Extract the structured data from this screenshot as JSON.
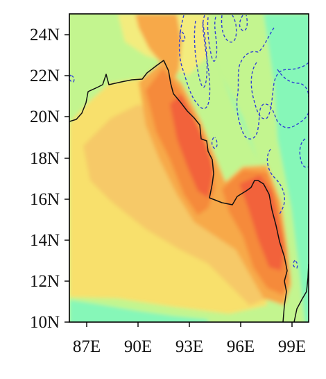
{
  "map": {
    "x_ticks": [
      "87E",
      "90E",
      "93E",
      "96E",
      "99E"
    ],
    "y_ticks": [
      "24N",
      "22N",
      "20N",
      "18N",
      "16N",
      "14N",
      "12N",
      "10N"
    ],
    "lon_range": [
      86,
      100
    ],
    "lat_range": [
      10,
      25
    ],
    "colors": {
      "aquamarine": "#86f7b8",
      "light_green": "#c3f58f",
      "pale_yellow": "#f3ec7e",
      "yellow": "#f8e06c",
      "light_orange": "#f6c968",
      "orange": "#f7a94a",
      "dark_orange": "#f58a3a",
      "red_orange": "#f2623a",
      "coastline": "#111111",
      "contour": "#2f3fd4"
    }
  }
}
